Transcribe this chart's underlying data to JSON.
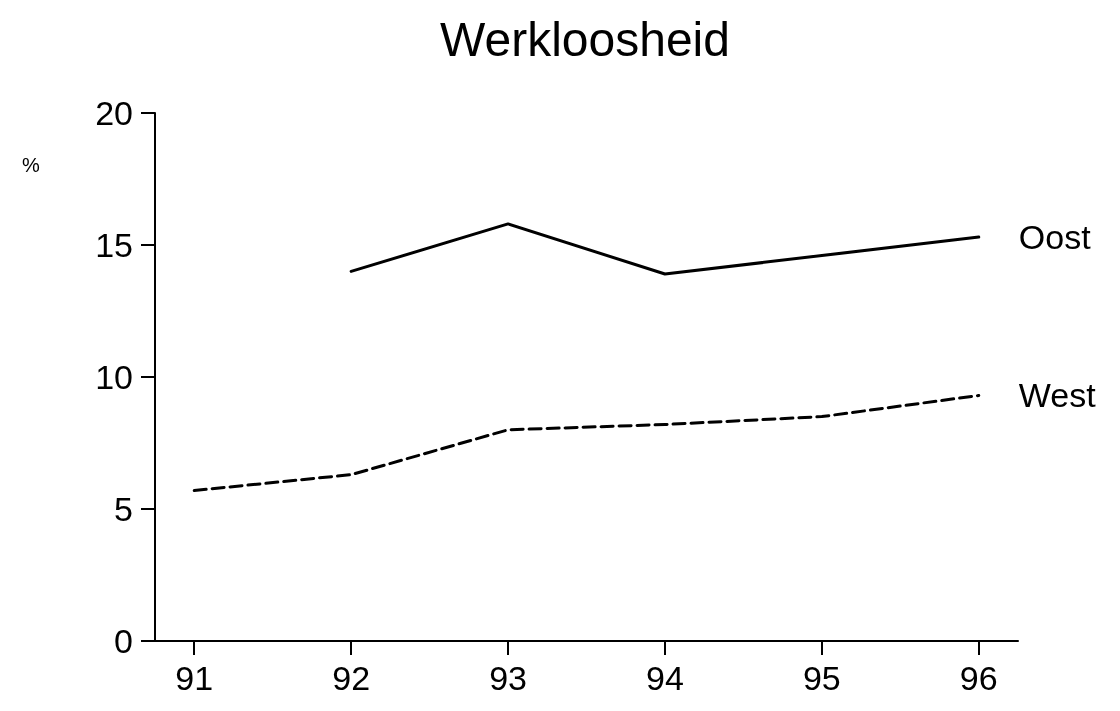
{
  "chart_data": {
    "type": "line",
    "title": "Werkloosheid",
    "ylabel": "%",
    "x": [
      91,
      92,
      93,
      94,
      95,
      96
    ],
    "series": [
      {
        "name": "Oost",
        "color": "#000000",
        "line_style": "solid",
        "values": [
          null,
          14.0,
          15.8,
          13.9,
          14.6,
          15.3
        ]
      },
      {
        "name": "West",
        "color": "#000000",
        "line_style": "dashed",
        "values": [
          5.7,
          6.3,
          8.0,
          8.2,
          8.5,
          9.3
        ]
      }
    ],
    "xlim": [
      90.75,
      96.25
    ],
    "xticks": [
      91,
      92,
      93,
      94,
      95,
      96
    ],
    "ylim": [
      0,
      20
    ],
    "yticks": [
      0,
      5,
      10,
      15,
      20
    ],
    "grid": false,
    "legend": false,
    "marker": "none"
  }
}
